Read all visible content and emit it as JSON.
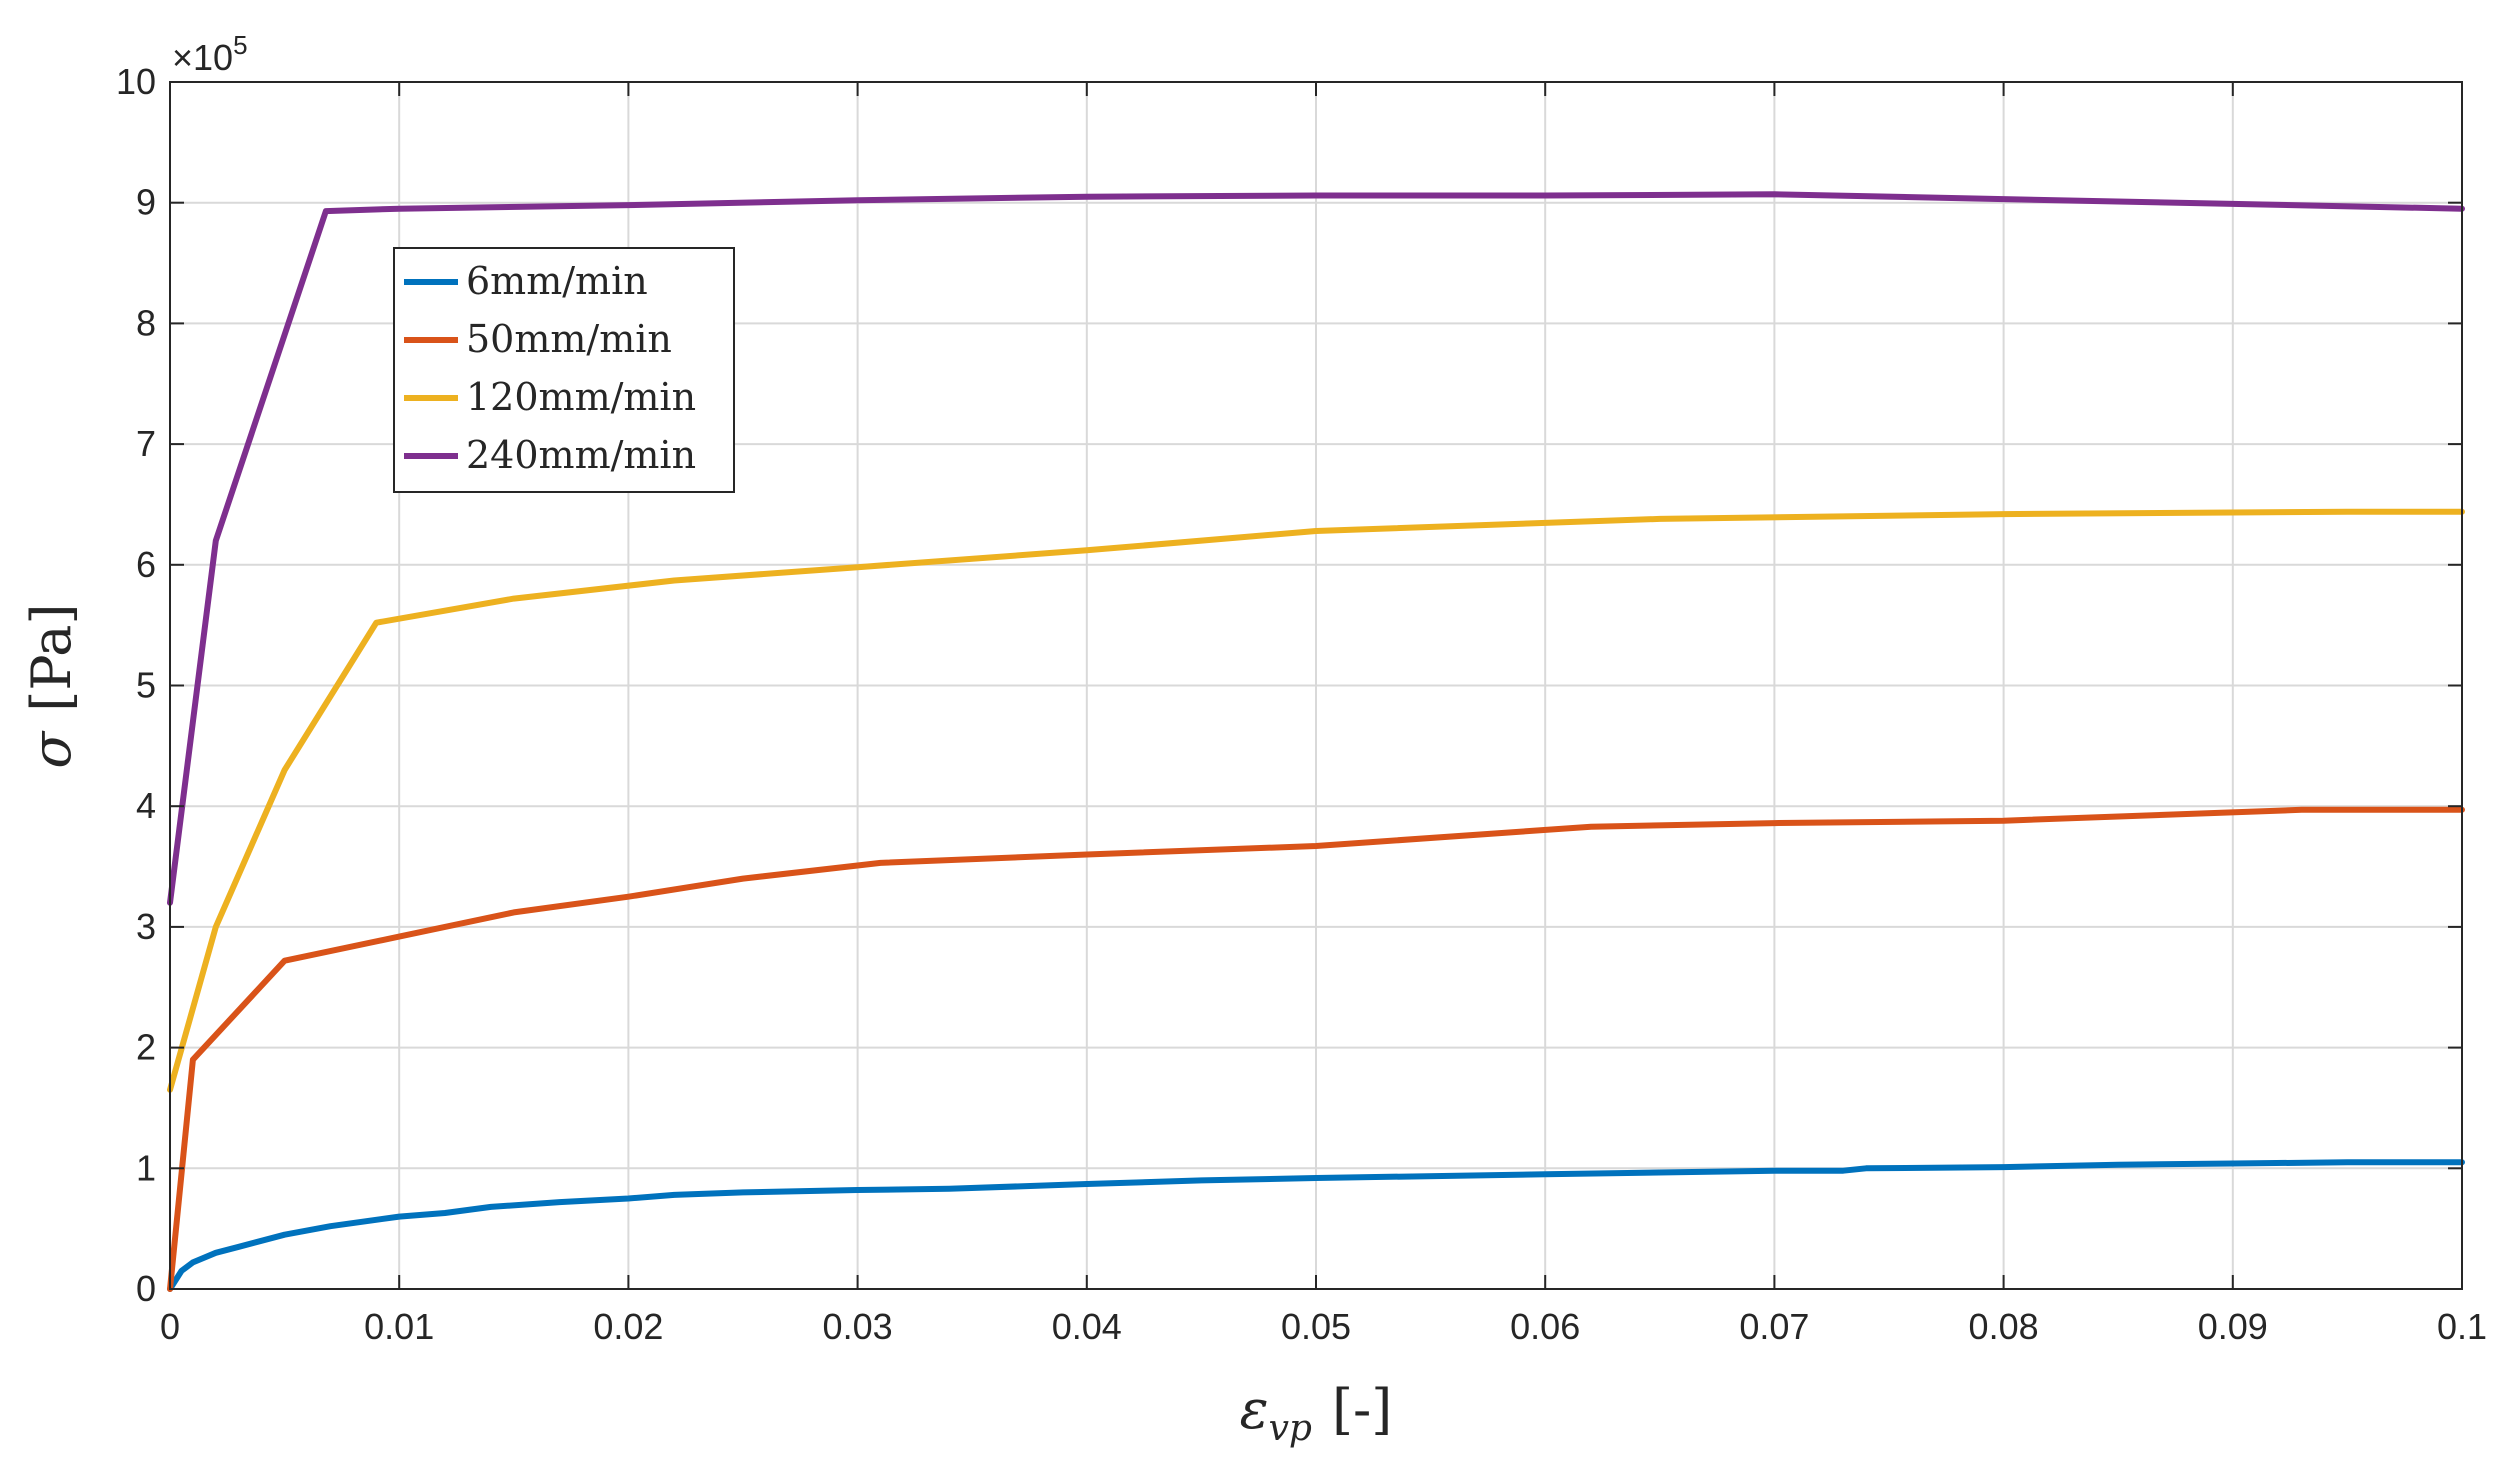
{
  "chart_data": {
    "type": "line",
    "xlabel_main": "ε",
    "xlabel_sub": "vp",
    "xlabel_unit": "[-]",
    "ylabel_main": "σ",
    "ylabel_unit": "[Pa]",
    "y_multiplier_base": "×10",
    "y_multiplier_exp": "5",
    "xlim": [
      0,
      0.1
    ],
    "ylim": [
      0,
      10
    ],
    "x_ticks": [
      "0",
      "0.01",
      "0.02",
      "0.03",
      "0.04",
      "0.05",
      "0.06",
      "0.07",
      "0.08",
      "0.09",
      "0.1"
    ],
    "y_ticks": [
      "0",
      "1",
      "2",
      "3",
      "4",
      "5",
      "6",
      "7",
      "8",
      "9",
      "10"
    ],
    "grid": true,
    "legend_position": "top-left",
    "series": [
      {
        "name": "6mm/min",
        "color": "#0072BD",
        "x": [
          0,
          0.0005,
          0.001,
          0.002,
          0.003,
          0.005,
          0.007,
          0.01,
          0.012,
          0.014,
          0.017,
          0.02,
          0.022,
          0.025,
          0.03,
          0.034,
          0.04,
          0.045,
          0.05,
          0.06,
          0.07,
          0.073,
          0.074,
          0.08,
          0.085,
          0.09,
          0.095,
          0.1
        ],
        "y": [
          0,
          0.15,
          0.22,
          0.3,
          0.35,
          0.45,
          0.52,
          0.6,
          0.63,
          0.68,
          0.72,
          0.75,
          0.78,
          0.8,
          0.82,
          0.83,
          0.87,
          0.9,
          0.92,
          0.95,
          0.98,
          0.98,
          1.0,
          1.01,
          1.03,
          1.04,
          1.05,
          1.05
        ]
      },
      {
        "name": "50mm/min",
        "color": "#D95319",
        "x": [
          0,
          0.001,
          0.005,
          0.01,
          0.015,
          0.02,
          0.025,
          0.031,
          0.04,
          0.05,
          0.062,
          0.07,
          0.08,
          0.093,
          0.1
        ],
        "y": [
          0,
          1.9,
          2.72,
          2.92,
          3.12,
          3.25,
          3.4,
          3.53,
          3.6,
          3.67,
          3.83,
          3.86,
          3.88,
          3.97,
          3.97
        ]
      },
      {
        "name": "120mm/min",
        "color": "#EDB120",
        "x": [
          0,
          0.002,
          0.005,
          0.009,
          0.015,
          0.022,
          0.03,
          0.04,
          0.05,
          0.065,
          0.08,
          0.095,
          0.1
        ],
        "y": [
          1.65,
          3.0,
          4.3,
          5.52,
          5.72,
          5.87,
          5.98,
          6.12,
          6.28,
          6.38,
          6.42,
          6.44,
          6.44
        ]
      },
      {
        "name": "240mm/min",
        "color": "#7E2F8E",
        "x": [
          0,
          0.002,
          0.0068,
          0.01,
          0.02,
          0.03,
          0.04,
          0.05,
          0.06,
          0.07,
          0.08,
          0.09,
          0.1
        ],
        "y": [
          3.2,
          6.2,
          8.93,
          8.95,
          8.98,
          9.02,
          9.05,
          9.06,
          9.06,
          9.07,
          9.03,
          8.99,
          8.95
        ]
      }
    ]
  }
}
